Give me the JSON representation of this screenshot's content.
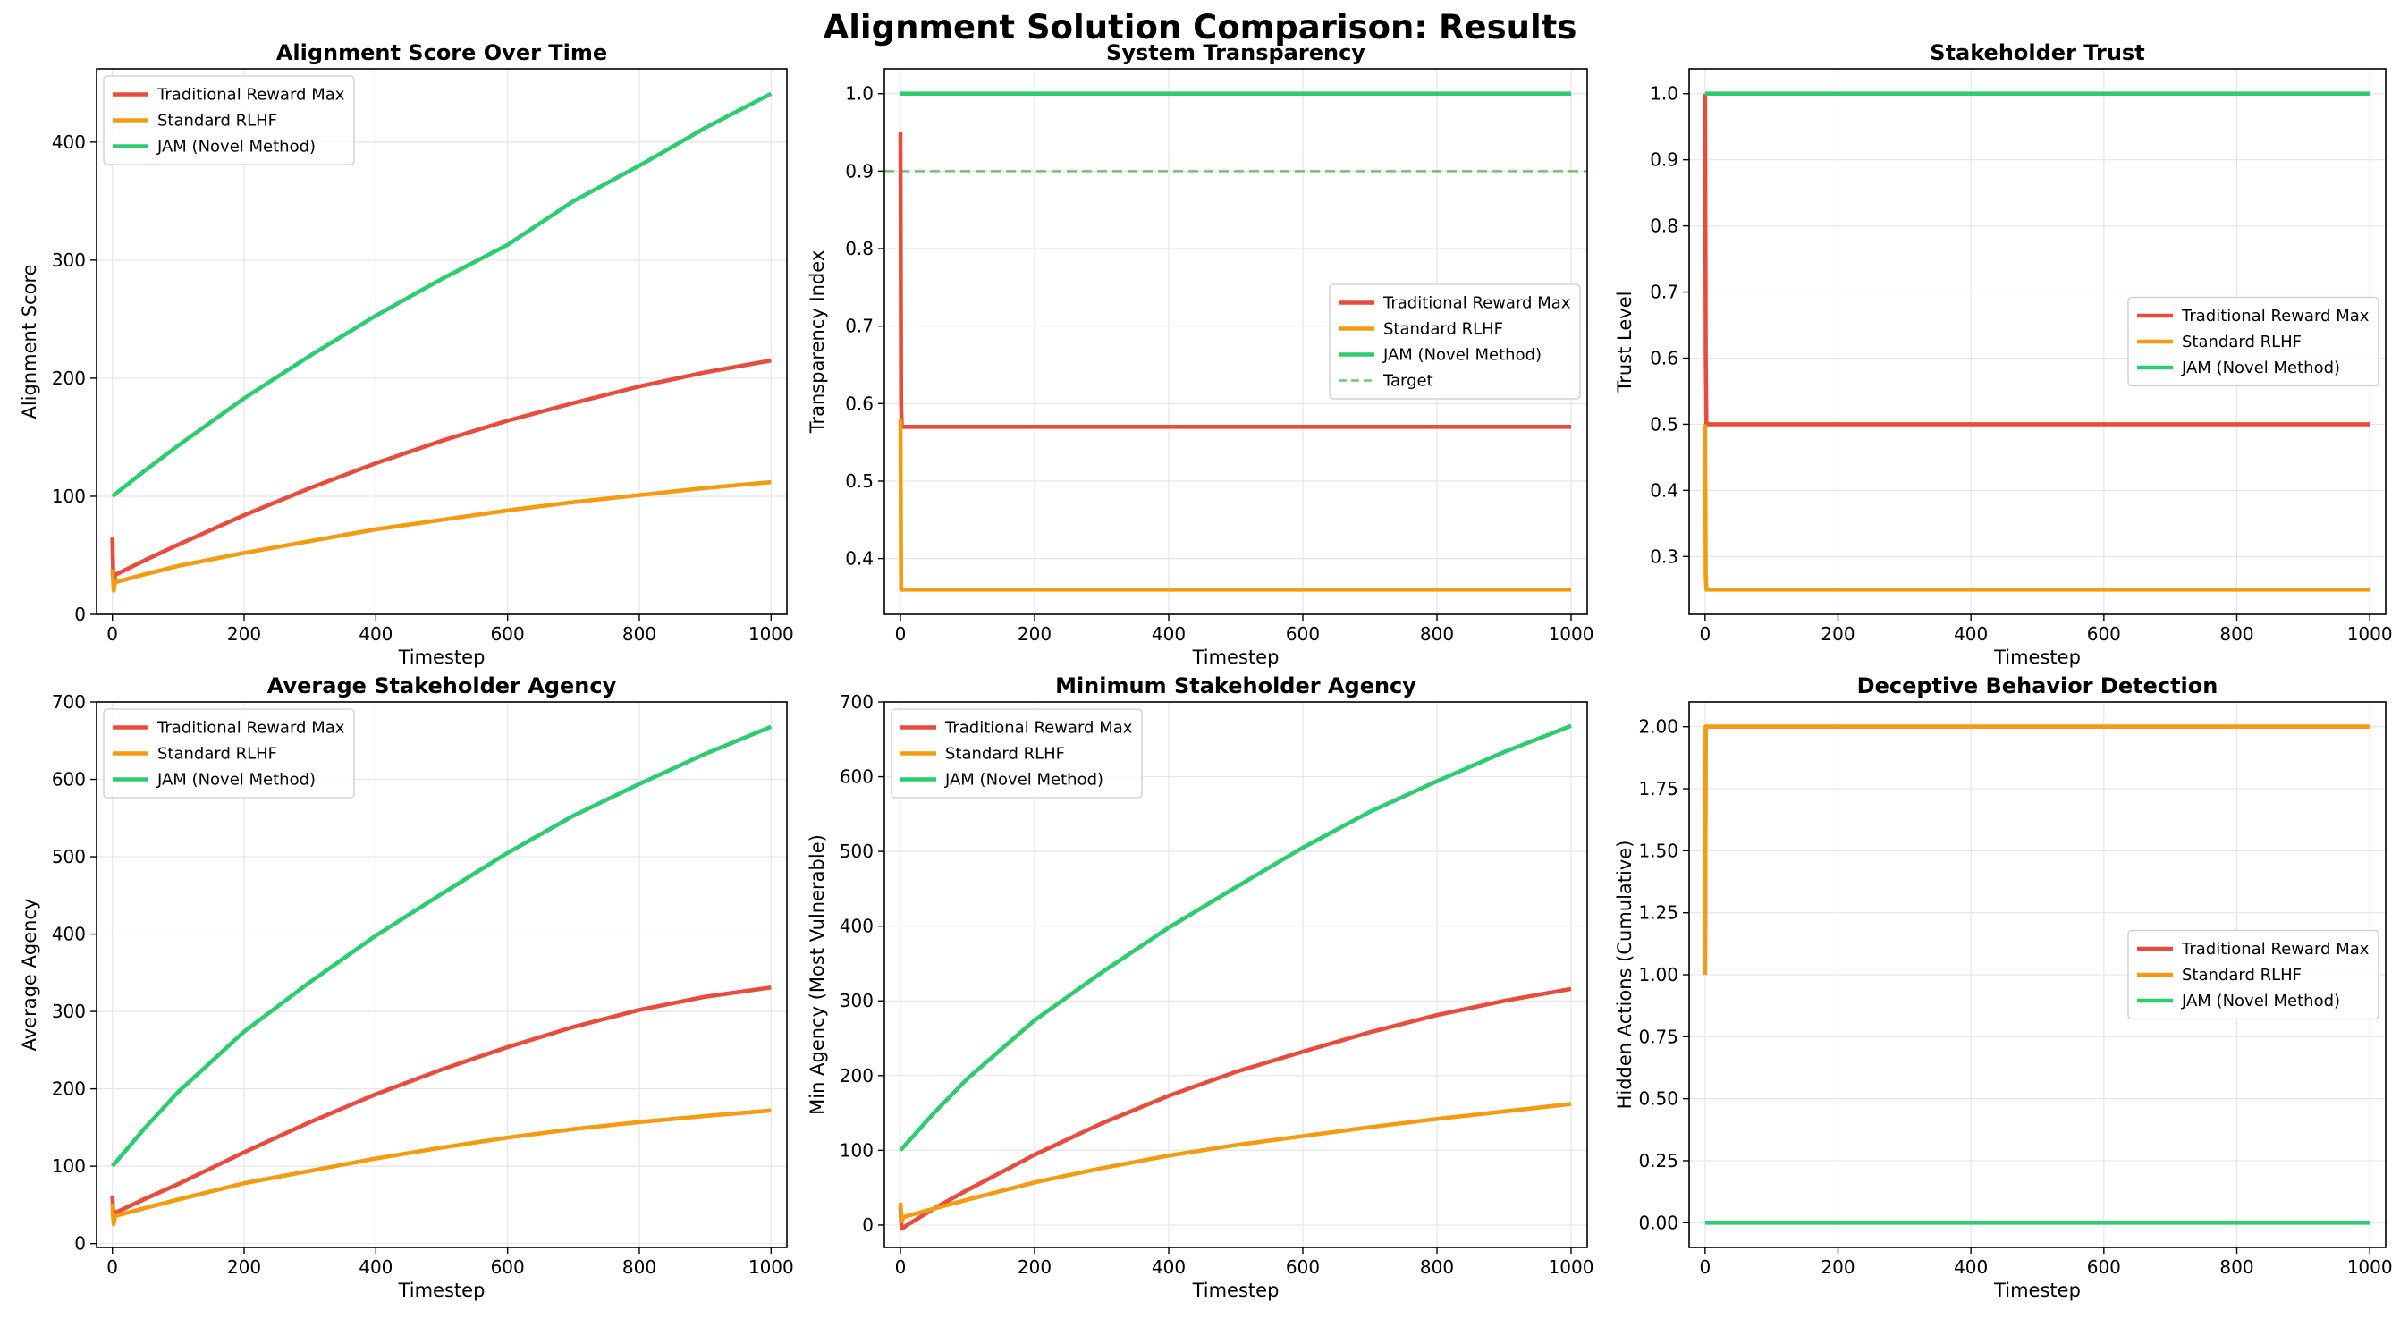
{
  "figure": {
    "title": "Alignment Solution Comparison: Results"
  },
  "colors": {
    "traditional": "#e74c3c",
    "rlhf": "#f39c12",
    "jam": "#2ecc71",
    "target": "#4caf50"
  },
  "chart_data": [
    {
      "type": "line",
      "title": "Alignment Score Over Time",
      "xlabel": "Timestep",
      "ylabel": "Alignment Score",
      "xlim": [
        -24,
        1024
      ],
      "ylim": [
        0,
        462
      ],
      "xticks": [
        0,
        200,
        400,
        600,
        800,
        1000
      ],
      "xtick_labels": [
        "0",
        "200",
        "400",
        "600",
        "800",
        "1000"
      ],
      "yticks": [
        0,
        100,
        200,
        300,
        400
      ],
      "ytick_labels": [
        "0",
        "100",
        "200",
        "300",
        "400"
      ],
      "grid": true,
      "legend": "upper left",
      "series": [
        {
          "name": "Traditional Reward Max",
          "color_key": "traditional",
          "x": [
            0,
            1,
            2,
            4,
            6,
            10,
            50,
            100,
            200,
            300,
            400,
            500,
            600,
            700,
            800,
            900,
            1000
          ],
          "y": [
            65,
            40,
            22,
            33,
            34,
            35,
            46,
            59,
            84,
            107,
            128,
            147,
            164,
            179,
            193,
            205,
            215
          ]
        },
        {
          "name": "Standard RLHF",
          "color_key": "rlhf",
          "x": [
            0,
            1,
            2,
            4,
            10,
            50,
            100,
            200,
            300,
            400,
            500,
            600,
            700,
            800,
            900,
            1000
          ],
          "y": [
            38,
            30,
            20,
            27,
            28,
            34,
            41,
            52,
            62,
            72,
            80,
            88,
            95,
            101,
            107,
            112
          ]
        },
        {
          "name": "JAM (Novel Method)",
          "color_key": "jam",
          "x": [
            0,
            50,
            100,
            200,
            300,
            400,
            500,
            600,
            700,
            800,
            900,
            1000
          ],
          "y": [
            100,
            122,
            143,
            183,
            219,
            253,
            284,
            313,
            350,
            380,
            412,
            441
          ]
        }
      ]
    },
    {
      "type": "line",
      "title": "System Transparency",
      "xlabel": "Timestep",
      "ylabel": "Transparency Index",
      "xlim": [
        -24,
        1024
      ],
      "ylim": [
        0.328,
        1.032
      ],
      "xticks": [
        0,
        200,
        400,
        600,
        800,
        1000
      ],
      "xtick_labels": [
        "0",
        "200",
        "400",
        "600",
        "800",
        "1000"
      ],
      "yticks": [
        0.4,
        0.5,
        0.6,
        0.7,
        0.8,
        0.9,
        1.0
      ],
      "ytick_labels": [
        "0.4",
        "0.5",
        "0.6",
        "0.7",
        "0.8",
        "0.9",
        "1.0"
      ],
      "grid": true,
      "legend": "center right",
      "series": [
        {
          "name": "Traditional Reward Max",
          "color_key": "traditional",
          "x": [
            0,
            1,
            2,
            1000
          ],
          "y": [
            0.95,
            0.6,
            0.57,
            0.57
          ]
        },
        {
          "name": "Standard RLHF",
          "color_key": "rlhf",
          "x": [
            0,
            1,
            2,
            1000
          ],
          "y": [
            0.58,
            0.36,
            0.36,
            0.36
          ]
        },
        {
          "name": "JAM (Novel Method)",
          "color_key": "jam",
          "x": [
            0,
            1000
          ],
          "y": [
            1.0,
            1.0
          ]
        }
      ],
      "hlines": [
        {
          "name": "Target",
          "y": 0.9,
          "color_key": "target",
          "dashed": true
        }
      ]
    },
    {
      "type": "line",
      "title": "Stakeholder Trust",
      "xlabel": "Timestep",
      "ylabel": "Trust Level",
      "xlim": [
        -24,
        1024
      ],
      "ylim": [
        0.2125,
        1.0375
      ],
      "xticks": [
        0,
        200,
        400,
        600,
        800,
        1000
      ],
      "xtick_labels": [
        "0",
        "200",
        "400",
        "600",
        "800",
        "1000"
      ],
      "yticks": [
        0.3,
        0.4,
        0.5,
        0.6,
        0.7,
        0.8,
        0.9,
        1.0
      ],
      "ytick_labels": [
        "0.3",
        "0.4",
        "0.5",
        "0.6",
        "0.7",
        "0.8",
        "0.9",
        "1.0"
      ],
      "grid": true,
      "legend": "center right",
      "series": [
        {
          "name": "Traditional Reward Max",
          "color_key": "traditional",
          "x": [
            0,
            1,
            2,
            1000
          ],
          "y": [
            1.0,
            0.6,
            0.5,
            0.5
          ]
        },
        {
          "name": "Standard RLHF",
          "color_key": "rlhf",
          "x": [
            0,
            1,
            2,
            1000
          ],
          "y": [
            0.5,
            0.27,
            0.25,
            0.25
          ]
        },
        {
          "name": "JAM (Novel Method)",
          "color_key": "jam",
          "x": [
            0,
            1000
          ],
          "y": [
            1.0,
            1.0
          ]
        }
      ]
    },
    {
      "type": "line",
      "title": "Average Stakeholder Agency",
      "xlabel": "Timestep",
      "ylabel": "Average Agency",
      "xlim": [
        -24,
        1024
      ],
      "ylim": [
        -5,
        700
      ],
      "xticks": [
        0,
        200,
        400,
        600,
        800,
        1000
      ],
      "xtick_labels": [
        "0",
        "200",
        "400",
        "600",
        "800",
        "1000"
      ],
      "yticks": [
        0,
        100,
        200,
        300,
        400,
        500,
        600,
        700
      ],
      "ytick_labels": [
        "0",
        "100",
        "200",
        "300",
        "400",
        "500",
        "600",
        "700"
      ],
      "grid": true,
      "legend": "upper left",
      "series": [
        {
          "name": "Traditional Reward Max",
          "color_key": "traditional",
          "x": [
            0,
            1,
            2,
            4,
            10,
            50,
            100,
            200,
            300,
            400,
            500,
            600,
            700,
            800,
            900,
            1000
          ],
          "y": [
            62,
            45,
            30,
            40,
            42,
            58,
            77,
            118,
            157,
            193,
            225,
            254,
            280,
            302,
            319,
            331
          ]
        },
        {
          "name": "Standard RLHF",
          "color_key": "rlhf",
          "x": [
            0,
            1,
            2,
            4,
            10,
            50,
            100,
            200,
            300,
            400,
            500,
            600,
            700,
            800,
            900,
            1000
          ],
          "y": [
            52,
            35,
            25,
            35,
            37,
            46,
            57,
            78,
            94,
            110,
            124,
            137,
            148,
            157,
            165,
            172
          ]
        },
        {
          "name": "JAM (Novel Method)",
          "color_key": "jam",
          "x": [
            0,
            50,
            100,
            200,
            300,
            400,
            500,
            600,
            700,
            800,
            900,
            1000
          ],
          "y": [
            100,
            150,
            196,
            274,
            338,
            398,
            452,
            505,
            553,
            594,
            633,
            668
          ]
        }
      ]
    },
    {
      "type": "line",
      "title": "Minimum Stakeholder Agency",
      "xlabel": "Timestep",
      "ylabel": "Min Agency (Most Vulnerable)",
      "xlim": [
        -24,
        1024
      ],
      "ylim": [
        -30,
        700
      ],
      "xticks": [
        0,
        200,
        400,
        600,
        800,
        1000
      ],
      "xtick_labels": [
        "0",
        "200",
        "400",
        "600",
        "800",
        "1000"
      ],
      "yticks": [
        0,
        100,
        200,
        300,
        400,
        500,
        600,
        700
      ],
      "ytick_labels": [
        "0",
        "100",
        "200",
        "300",
        "400",
        "500",
        "600",
        "700"
      ],
      "grid": true,
      "legend": "upper left",
      "series": [
        {
          "name": "Traditional Reward Max",
          "color_key": "traditional",
          "x": [
            0,
            1,
            2,
            10,
            50,
            100,
            200,
            300,
            400,
            500,
            600,
            700,
            800,
            900,
            1000
          ],
          "y": [
            25,
            5,
            -5,
            0,
            22,
            47,
            94,
            136,
            173,
            205,
            232,
            258,
            281,
            300,
            316
          ]
        },
        {
          "name": "Standard RLHF",
          "color_key": "rlhf",
          "x": [
            0,
            1,
            2,
            4,
            10,
            50,
            100,
            200,
            300,
            400,
            500,
            600,
            700,
            800,
            900,
            1000
          ],
          "y": [
            30,
            18,
            5,
            10,
            12,
            22,
            34,
            57,
            76,
            93,
            107,
            119,
            131,
            142,
            152,
            162
          ]
        },
        {
          "name": "JAM (Novel Method)",
          "color_key": "jam",
          "x": [
            0,
            50,
            100,
            200,
            300,
            400,
            500,
            600,
            700,
            800,
            900,
            1000
          ],
          "y": [
            100,
            150,
            196,
            274,
            338,
            398,
            452,
            505,
            553,
            594,
            633,
            668
          ]
        }
      ]
    },
    {
      "type": "line",
      "title": "Deceptive Behavior Detection",
      "xlabel": "Timestep",
      "ylabel": "Hidden Actions (Cumulative)",
      "xlim": [
        -24,
        1024
      ],
      "ylim": [
        -0.1,
        2.1
      ],
      "xticks": [
        0,
        200,
        400,
        600,
        800,
        1000
      ],
      "xtick_labels": [
        "0",
        "200",
        "400",
        "600",
        "800",
        "1000"
      ],
      "yticks": [
        0,
        0.25,
        0.5,
        0.75,
        1.0,
        1.25,
        1.5,
        1.75,
        2.0
      ],
      "ytick_labels": [
        "0.00",
        "0.25",
        "0.50",
        "0.75",
        "1.00",
        "1.25",
        "1.50",
        "1.75",
        "2.00"
      ],
      "grid": true,
      "legend": "center right",
      "series": [
        {
          "name": "Traditional Reward Max",
          "color_key": "traditional",
          "x": [
            0,
            1,
            2,
            1000
          ],
          "y": [
            1.0,
            2.0,
            2.0,
            2.0
          ]
        },
        {
          "name": "Standard RLHF",
          "color_key": "rlhf",
          "x": [
            0,
            1,
            2,
            1000
          ],
          "y": [
            1.0,
            2.0,
            2.0,
            2.0
          ]
        },
        {
          "name": "JAM (Novel Method)",
          "color_key": "jam",
          "x": [
            0,
            1000
          ],
          "y": [
            0.0,
            0.0
          ]
        }
      ]
    }
  ]
}
